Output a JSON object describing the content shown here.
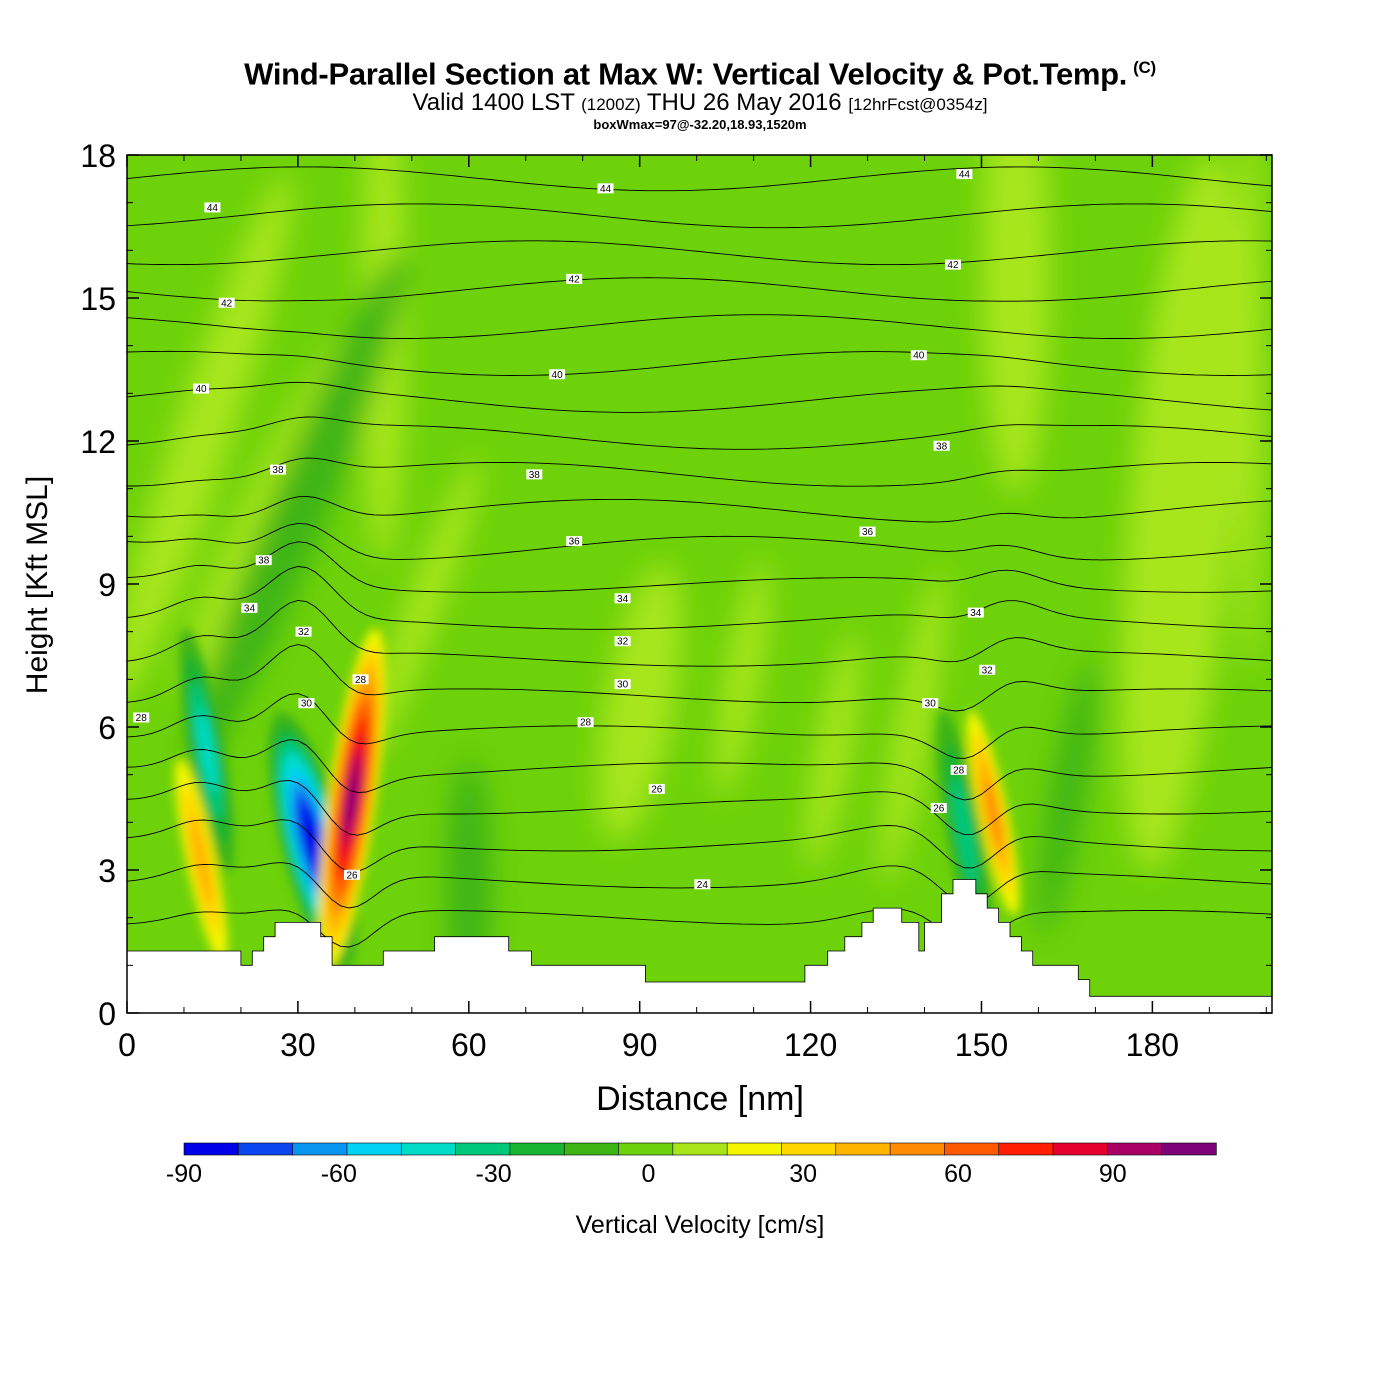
{
  "title": {
    "main": "Wind-Parallel Section at Max W: Vertical Velocity & Pot.Temp.",
    "copyright": "(C)",
    "valid_prefix": "Valid 1400 LST",
    "valid_utc": "(1200Z)",
    "valid_date": "THU 26 May 2016",
    "forecast": "[12hrFcst@0354z]",
    "box_info": "boxWmax=97@-32.20,18.93,1520m"
  },
  "chart_data": {
    "type": "heatmap",
    "xlabel": "Distance [nm]",
    "ylabel": "Height [Kft MSL]",
    "xlim": [
      0,
      201
    ],
    "ylim": [
      0,
      18
    ],
    "xticks": [
      "0",
      "30",
      "60",
      "90",
      "120",
      "150",
      "180"
    ],
    "yticks": [
      "0",
      "3",
      "6",
      "9",
      "12",
      "15",
      "18"
    ],
    "colorbar": {
      "label": "Vertical Velocity [cm/s]",
      "bins": [
        -90,
        -80,
        -70,
        -60,
        -50,
        -40,
        -30,
        -20,
        -10,
        0,
        10,
        20,
        30,
        40,
        50,
        60,
        70,
        80,
        90,
        100,
        110
      ],
      "colors": [
        "#0000e8",
        "#0a46f0",
        "#0896f0",
        "#00d2f5",
        "#00dcc8",
        "#00c87a",
        "#18b432",
        "#3cb414",
        "#6ed20a",
        "#a8e61a",
        "#f5f500",
        "#ffd700",
        "#ffb400",
        "#ff8c00",
        "#ff5a00",
        "#ff1e00",
        "#e6002d",
        "#a80064",
        "#7c0078"
      ],
      "tick_labels": [
        "-90",
        "-60",
        "-30",
        "0",
        "30",
        "60",
        "90"
      ]
    },
    "background_value_range": [
      -10,
      0
    ],
    "updrafts": [
      {
        "x": 39.5,
        "y": 4.5,
        "max": 97
      },
      {
        "x": 152,
        "y": 4.2,
        "max": 40
      },
      {
        "x": 13,
        "y": 3.2,
        "max": 30
      }
    ],
    "downdrafts": [
      {
        "x": 32.5,
        "y": 3.6,
        "min": -90
      },
      {
        "x": 14,
        "y": 5.5,
        "min": -40
      },
      {
        "x": 147,
        "y": 3.8,
        "min": -30
      }
    ],
    "theta_contours": {
      "interval": 1,
      "labeled_levels": [
        "24",
        "26",
        "28",
        "30",
        "32",
        "34",
        "36",
        "38",
        "40",
        "42",
        "44"
      ],
      "labels": [
        {
          "text": "28",
          "x": 2.5,
          "y": 6.2
        },
        {
          "text": "40",
          "x": 13,
          "y": 13.1
        },
        {
          "text": "42",
          "x": 17.5,
          "y": 14.9
        },
        {
          "text": "44",
          "x": 15,
          "y": 16.9
        },
        {
          "text": "38",
          "x": 26.5,
          "y": 11.4
        },
        {
          "text": "38",
          "x": 24,
          "y": 9.5
        },
        {
          "text": "34",
          "x": 21.5,
          "y": 8.5
        },
        {
          "text": "32",
          "x": 31,
          "y": 8.0
        },
        {
          "text": "30",
          "x": 31.5,
          "y": 6.5
        },
        {
          "text": "28",
          "x": 41,
          "y": 7.0
        },
        {
          "text": "26",
          "x": 39.5,
          "y": 2.9
        },
        {
          "text": "44",
          "x": 84,
          "y": 17.3
        },
        {
          "text": "42",
          "x": 78.5,
          "y": 15.4
        },
        {
          "text": "40",
          "x": 75.5,
          "y": 13.4
        },
        {
          "text": "38",
          "x": 71.5,
          "y": 11.3
        },
        {
          "text": "36",
          "x": 78.5,
          "y": 9.9
        },
        {
          "text": "34",
          "x": 87,
          "y": 8.7
        },
        {
          "text": "32",
          "x": 87,
          "y": 7.8
        },
        {
          "text": "30",
          "x": 87,
          "y": 6.9
        },
        {
          "text": "28",
          "x": 80.5,
          "y": 6.1
        },
        {
          "text": "26",
          "x": 93,
          "y": 4.7
        },
        {
          "text": "24",
          "x": 101,
          "y": 2.7
        },
        {
          "text": "36",
          "x": 130,
          "y": 10.1
        },
        {
          "text": "44",
          "x": 147,
          "y": 17.6
        },
        {
          "text": "42",
          "x": 145,
          "y": 15.7
        },
        {
          "text": "40",
          "x": 139,
          "y": 13.8
        },
        {
          "text": "38",
          "x": 143,
          "y": 11.9
        },
        {
          "text": "34",
          "x": 149,
          "y": 8.4
        },
        {
          "text": "32",
          "x": 151,
          "y": 7.2
        },
        {
          "text": "30",
          "x": 141,
          "y": 6.5
        },
        {
          "text": "28",
          "x": 146,
          "y": 5.1
        },
        {
          "text": "26",
          "x": 142.5,
          "y": 4.3
        }
      ]
    },
    "terrain": [
      [
        0,
        1.3
      ],
      [
        20,
        1.3
      ],
      [
        20,
        1.0
      ],
      [
        22,
        1.0
      ],
      [
        22,
        1.3
      ],
      [
        24,
        1.3
      ],
      [
        24,
        1.6
      ],
      [
        26,
        1.6
      ],
      [
        26,
        1.9
      ],
      [
        34,
        1.9
      ],
      [
        34,
        1.6
      ],
      [
        36,
        1.6
      ],
      [
        36,
        1.0
      ],
      [
        45,
        1.0
      ],
      [
        45,
        1.3
      ],
      [
        54,
        1.3
      ],
      [
        54,
        1.6
      ],
      [
        67,
        1.6
      ],
      [
        67,
        1.3
      ],
      [
        71,
        1.3
      ],
      [
        71,
        1.0
      ],
      [
        91,
        1.0
      ],
      [
        91,
        0.65
      ],
      [
        119,
        0.65
      ],
      [
        119,
        1.0
      ],
      [
        123,
        1.0
      ],
      [
        123,
        1.3
      ],
      [
        126,
        1.3
      ],
      [
        126,
        1.6
      ],
      [
        129,
        1.6
      ],
      [
        129,
        1.9
      ],
      [
        131,
        1.9
      ],
      [
        131,
        2.2
      ],
      [
        136,
        2.2
      ],
      [
        136,
        1.9
      ],
      [
        139,
        1.9
      ],
      [
        139,
        1.3
      ],
      [
        140,
        1.3
      ],
      [
        140,
        1.9
      ],
      [
        143,
        1.9
      ],
      [
        143,
        2.5
      ],
      [
        145,
        2.5
      ],
      [
        145,
        2.8
      ],
      [
        149,
        2.8
      ],
      [
        149,
        2.5
      ],
      [
        151,
        2.5
      ],
      [
        151,
        2.2
      ],
      [
        153,
        2.2
      ],
      [
        153,
        1.9
      ],
      [
        155,
        1.9
      ],
      [
        155,
        1.6
      ],
      [
        157,
        1.6
      ],
      [
        157,
        1.3
      ],
      [
        159,
        1.3
      ],
      [
        159,
        1.0
      ],
      [
        167,
        1.0
      ],
      [
        167,
        0.7
      ],
      [
        169,
        0.7
      ],
      [
        169,
        0.35
      ],
      [
        201,
        0.35
      ]
    ]
  }
}
